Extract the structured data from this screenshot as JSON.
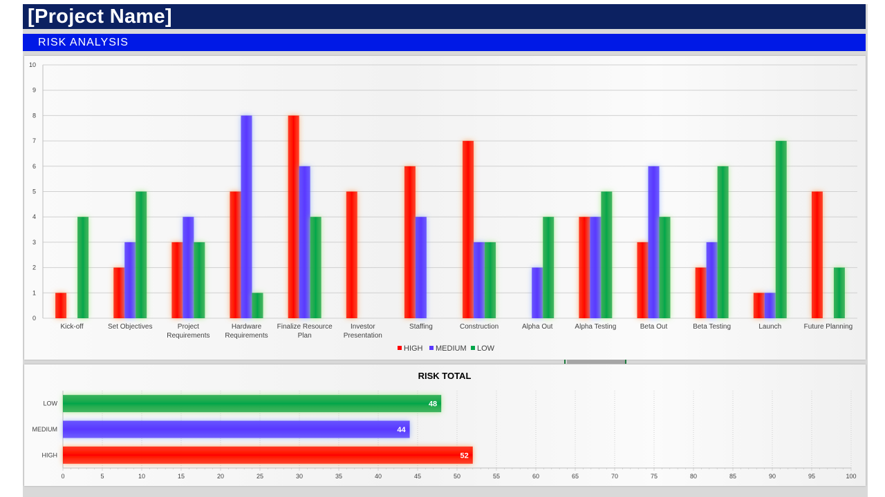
{
  "header": {
    "title": "[Project Name]"
  },
  "section": {
    "title": "RISK ANALYSIS"
  },
  "colors": {
    "high": "#ff0000",
    "medium": "#5a38ff",
    "low": "#00a64a",
    "title_bg": "#0c2161",
    "section_bg": "#0019e6"
  },
  "chart_data": [
    {
      "type": "bar",
      "title": "",
      "xlabel": "",
      "ylabel": "",
      "ylim": [
        0,
        10
      ],
      "yticks": [
        "0",
        "1",
        "2",
        "3",
        "4",
        "5",
        "6",
        "7",
        "8",
        "9",
        "10"
      ],
      "grid": true,
      "legend_position": "bottom",
      "categories": [
        [
          "Kick-off"
        ],
        [
          "Set Objectives"
        ],
        [
          "Project",
          "Requirements"
        ],
        [
          "Hardware",
          "Requirements"
        ],
        [
          "Finalize Resource",
          "Plan"
        ],
        [
          "Investor",
          "Presentation"
        ],
        [
          "Staffing"
        ],
        [
          "Construction"
        ],
        [
          "Alpha Out"
        ],
        [
          "Alpha Testing"
        ],
        [
          "Beta Out"
        ],
        [
          "Beta Testing"
        ],
        [
          "Launch"
        ],
        [
          "Future Planning"
        ]
      ],
      "series": [
        {
          "name": "HIGH",
          "color": "#ff0000",
          "values": [
            1,
            2,
            3,
            5,
            8,
            5,
            6,
            7,
            0,
            4,
            3,
            2,
            1,
            5
          ]
        },
        {
          "name": "MEDIUM",
          "color": "#5a38ff",
          "values": [
            0,
            3,
            4,
            8,
            6,
            0,
            4,
            3,
            2,
            4,
            6,
            3,
            1,
            0
          ]
        },
        {
          "name": "LOW",
          "color": "#00a64a",
          "values": [
            4,
            5,
            3,
            1,
            4,
            0,
            0,
            3,
            4,
            5,
            4,
            6,
            7,
            2
          ]
        }
      ]
    },
    {
      "type": "bar",
      "orientation": "horizontal",
      "title": "RISK TOTAL",
      "xlim": [
        0,
        100
      ],
      "xticks": [
        "0",
        "5",
        "10",
        "15",
        "20",
        "25",
        "30",
        "35",
        "40",
        "45",
        "50",
        "55",
        "60",
        "65",
        "70",
        "75",
        "80",
        "85",
        "90",
        "95",
        "100"
      ],
      "grid": true,
      "categories": [
        "LOW",
        "MEDIUM",
        "HIGH"
      ],
      "values": [
        48,
        44,
        52
      ],
      "colors": [
        "#00a64a",
        "#5a38ff",
        "#ff0000"
      ],
      "data_labels": [
        "48",
        "44",
        "52"
      ]
    }
  ]
}
